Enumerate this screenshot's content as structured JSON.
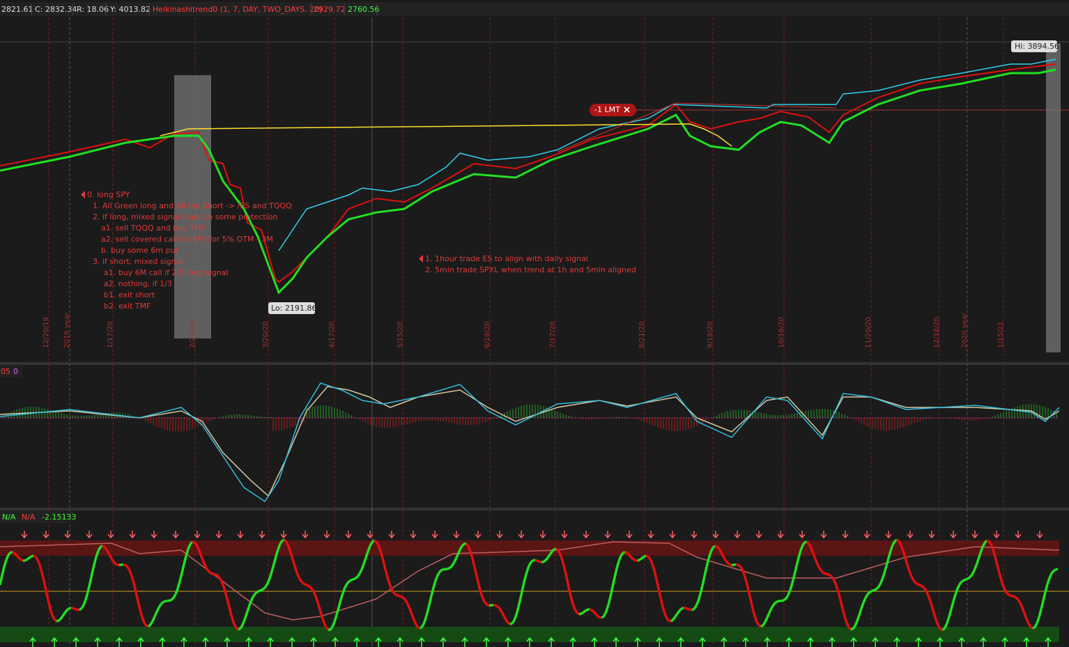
{
  "header": {
    "price": "2821.61",
    "close": "C: 2832.34",
    "range": "R: 18.06",
    "y": "Y: 4013.82",
    "study": "Heikinashitrend0 (1, 7, DAY, TWO_DAYS, 20)",
    "study_val1": "2929.72",
    "study_val2": "2760.56"
  },
  "main": {
    "hi_label": "Hi: 3894.56",
    "lo_label": "Lo: 2191.86",
    "order_label": "-1 LMT",
    "notes_left": [
      "0. long SPY",
      "1. All Green long and All red Short -> /ES and TQQQ",
      "2. if long, mixed signal leads to some protection",
      "a1.  sell TQQQ and buy TMF",
      "a2.  sell covered call for SPY for 5% OTM - 3M",
      "b.   buy some 6m put",
      "3. if short, mixed signal",
      "a1. buy 6M call if 2/3 long signal",
      "a2. nothing, if 1/3",
      "b1. exit short",
      "b2. exit TMF"
    ],
    "notes_right": [
      "1. 1hour trade ES to align with daily signal",
      "2. 5min trade SPXL when trend at 1h and 5min aligned"
    ],
    "dates": [
      "12/20/19",
      "2019 year",
      "1/17/20",
      "2/21/20",
      "3/20/20",
      "4/17/20",
      "5/15/20",
      "6/19/20",
      "7/17/20",
      "8/21/20",
      "9/18/20",
      "10/16/20",
      "11/20/20",
      "12/18/20",
      "2020 year",
      "1/15/21"
    ]
  },
  "macd": {
    "header": [
      "05",
      "0"
    ]
  },
  "oscillator": {
    "header": [
      "N/A",
      "N/A",
      "-2.15133"
    ]
  }
}
